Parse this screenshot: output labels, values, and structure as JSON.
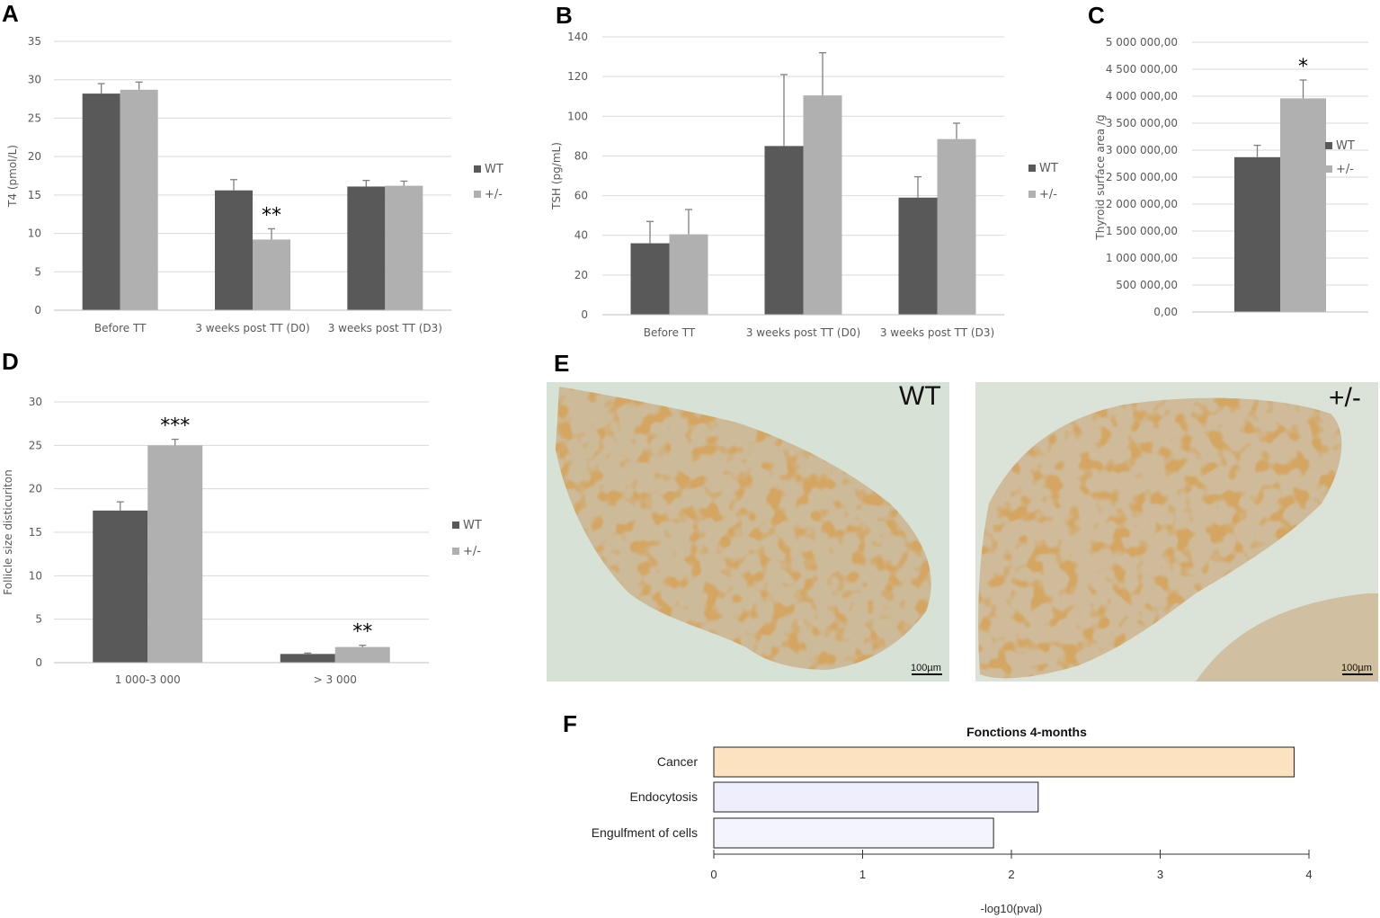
{
  "panels": {
    "A": "A",
    "B": "B",
    "C": "C",
    "D": "D",
    "E": "E",
    "F": "F"
  },
  "colors": {
    "wt": "#595959",
    "het": "#b0b0b0",
    "grid": "#d9d9d9",
    "cancer": "#fde2c2",
    "endo": "#eeeefc",
    "engulf": "#f4f4fd"
  },
  "chart_data": [
    {
      "id": "A",
      "type": "bar",
      "ylabel": "T4 (pmol/L)",
      "ylim": [
        0,
        35
      ],
      "yticks": [
        0,
        5,
        10,
        15,
        20,
        25,
        30,
        35
      ],
      "categories": [
        "Before TT",
        "3 weeks post TT (D0)",
        "3 weeks post TT (D3)"
      ],
      "series": [
        {
          "name": "WT",
          "values": [
            28.2,
            15.6,
            16.1
          ],
          "errors": [
            1.3,
            1.4,
            0.8
          ]
        },
        {
          "name": "+/-",
          "values": [
            28.7,
            9.2,
            16.2
          ],
          "errors": [
            1.0,
            1.4,
            0.6
          ]
        }
      ],
      "annotations": [
        {
          "category": 1,
          "series": 1,
          "text": "**"
        }
      ],
      "legend": [
        "WT",
        "+/-"
      ]
    },
    {
      "id": "B",
      "type": "bar",
      "ylabel": "TSH (pg/mL)",
      "ylim": [
        0,
        140
      ],
      "yticks": [
        0,
        20,
        40,
        60,
        80,
        100,
        120,
        140
      ],
      "categories": [
        "Before TT",
        "3 weeks post TT (D0)",
        "3 weeks post TT (D3)"
      ],
      "series": [
        {
          "name": "WT",
          "values": [
            36,
            85,
            59
          ],
          "errors": [
            11,
            36,
            10.5
          ]
        },
        {
          "name": "+/-",
          "values": [
            40.5,
            110.5,
            88.5
          ],
          "errors": [
            12.5,
            21.5,
            8
          ]
        }
      ],
      "legend": [
        "WT",
        "+/-"
      ]
    },
    {
      "id": "C",
      "type": "bar",
      "ylabel": "Thyroid surface area /g",
      "ylim": [
        0,
        5000000
      ],
      "yticks": [
        0,
        500000,
        1000000,
        1500000,
        2000000,
        2500000,
        3000000,
        3500000,
        4000000,
        4500000,
        5000000
      ],
      "ytick_labels": [
        "0,00",
        "500 000,00",
        "1 000 000,00",
        "1 500 000,00",
        "2 000 000,00",
        "2 500 000,00",
        "3 000 000,00",
        "3 500 000,00",
        "4 000 000,00",
        "4 500 000,00",
        "5 000 000,00"
      ],
      "categories": [
        ""
      ],
      "series": [
        {
          "name": "WT",
          "values": [
            2870000
          ],
          "errors": [
            220000
          ]
        },
        {
          "name": "+/-",
          "values": [
            3960000
          ],
          "errors": [
            340000
          ]
        }
      ],
      "annotations": [
        {
          "category": 0,
          "series": 1,
          "text": "*"
        }
      ],
      "legend": [
        "WT",
        "+/-"
      ]
    },
    {
      "id": "D",
      "type": "bar",
      "ylabel": "Follicle size disticuriton",
      "ylim": [
        0,
        30
      ],
      "yticks": [
        0,
        5,
        10,
        15,
        20,
        25,
        30
      ],
      "categories": [
        "1 000-3 000",
        "> 3 000"
      ],
      "series": [
        {
          "name": "WT",
          "values": [
            17.5,
            1.0
          ],
          "errors": [
            1.0,
            0.1
          ]
        },
        {
          "name": "+/-",
          "values": [
            25.0,
            1.8
          ],
          "errors": [
            0.7,
            0.2
          ]
        }
      ],
      "annotations": [
        {
          "category": 0,
          "series": 1,
          "text": "***"
        },
        {
          "category": 1,
          "series": 1,
          "text": "**"
        }
      ],
      "legend": [
        "WT",
        "+/-"
      ]
    },
    {
      "id": "F",
      "type": "bar",
      "orientation": "horizontal",
      "title": "Fonctions 4-months",
      "xlabel": "-log10(pval)",
      "xlim": [
        0,
        4
      ],
      "xticks": [
        0,
        1,
        2,
        3,
        4
      ],
      "categories": [
        "Cancer",
        "Endocytosis",
        "Engulfment of cells"
      ],
      "values": [
        3.9,
        2.18,
        1.88
      ]
    }
  ],
  "micrographs": {
    "left_label": "WT",
    "right_label": "+/-",
    "scale_bar": "100µm"
  }
}
